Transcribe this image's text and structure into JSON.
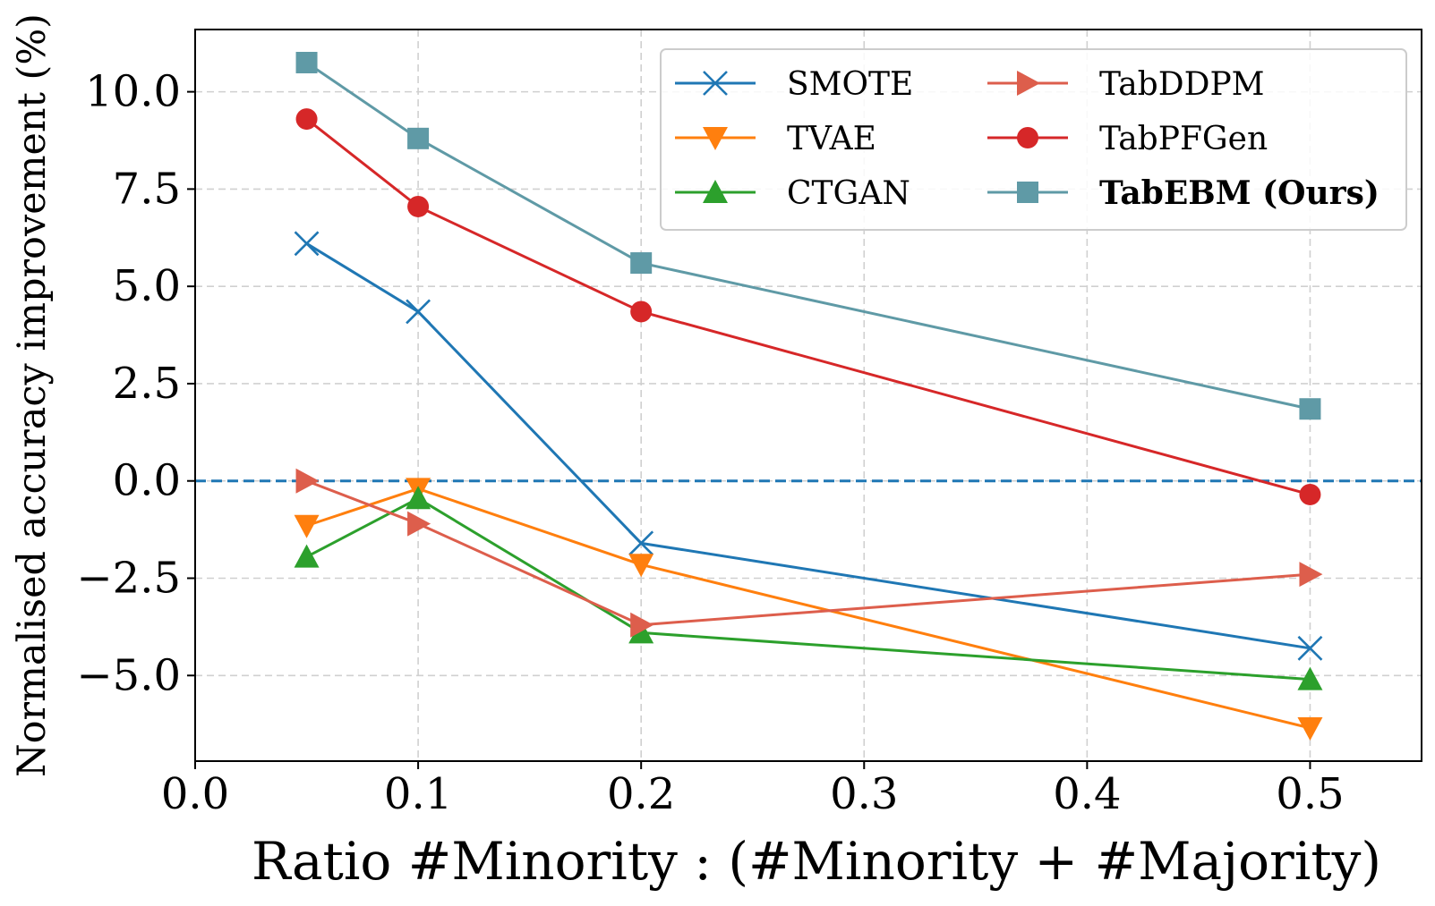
{
  "chart_data": {
    "type": "line",
    "title": "",
    "xlabel": "Ratio #Minority : (#Minority + #Majority)",
    "ylabel": "Normalised accuracy improvement (%)",
    "xlim": [
      0.0,
      0.55
    ],
    "ylim": [
      -7.2,
      11.6
    ],
    "xticks": [
      0.0,
      0.1,
      0.2,
      0.3,
      0.4,
      0.5
    ],
    "xtick_labels": [
      "0.0",
      "0.1",
      "0.2",
      "0.3",
      "0.4",
      "0.5"
    ],
    "yticks": [
      -5.0,
      -2.5,
      0.0,
      2.5,
      5.0,
      7.5,
      10.0
    ],
    "ytick_labels": [
      "−5.0",
      "−2.5",
      "0.0",
      "2.5",
      "5.0",
      "7.5",
      "10.0"
    ],
    "grid": true,
    "legend_position": "top-right",
    "reference_line": {
      "y": 0.0,
      "style": "dashed",
      "color": "#1f77b4"
    },
    "x": [
      0.05,
      0.1,
      0.2,
      0.5
    ],
    "series": [
      {
        "name": "SMOTE",
        "marker": "x",
        "color": "#1f77b4",
        "bold": false,
        "values": [
          6.1,
          4.35,
          -1.6,
          -4.3
        ]
      },
      {
        "name": "TVAE",
        "marker": "triangle-down",
        "color": "#ff7f0e",
        "bold": false,
        "values": [
          -1.15,
          -0.2,
          -2.15,
          -6.35
        ]
      },
      {
        "name": "CTGAN",
        "marker": "triangle-up",
        "color": "#2ca02c",
        "bold": false,
        "values": [
          -1.95,
          -0.45,
          -3.9,
          -5.1
        ]
      },
      {
        "name": "TabDDPM",
        "marker": "triangle-right",
        "color": "#dd5e4c",
        "bold": false,
        "values": [
          0.0,
          -1.1,
          -3.7,
          -2.4
        ]
      },
      {
        "name": "TabPFGen",
        "marker": "circle",
        "color": "#d62728",
        "bold": false,
        "values": [
          9.3,
          7.05,
          4.35,
          -0.35
        ]
      },
      {
        "name": "TabEBM (Ours)",
        "marker": "square",
        "color": "#5f9aa6",
        "bold": true,
        "values": [
          10.75,
          8.8,
          5.6,
          1.85
        ]
      }
    ]
  }
}
